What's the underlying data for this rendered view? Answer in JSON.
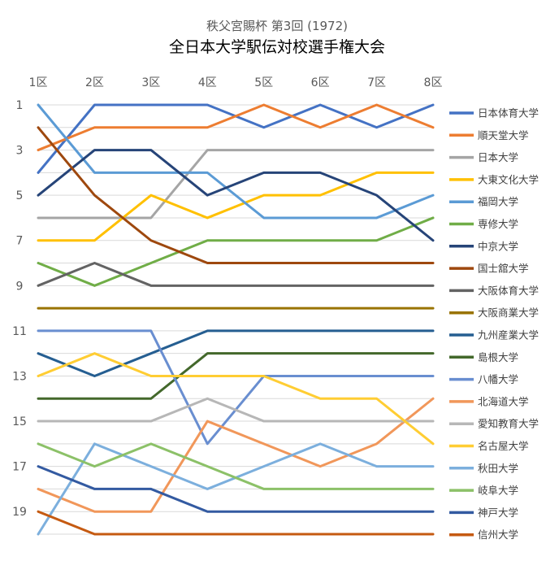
{
  "chart_data": {
    "type": "line",
    "title": "秩父宮賜杯 第3回 (1972)",
    "subtitle": "全日本大学駅伝対校選手権大会",
    "x_categories": [
      "1区",
      "2区",
      "3区",
      "4区",
      "5区",
      "6区",
      "7区",
      "8区"
    ],
    "y_axis": {
      "reversed": true,
      "range": [
        1,
        20
      ],
      "tick_labels": [
        "1",
        "3",
        "5",
        "7",
        "9",
        "11",
        "13",
        "15",
        "17",
        "19"
      ]
    },
    "grid": "horizontal",
    "legend_position": "right",
    "series": [
      {
        "name": "日本体育大学",
        "color": "#4472C4",
        "values": [
          4,
          1,
          1,
          1,
          2,
          1,
          2,
          1
        ]
      },
      {
        "name": "順天堂大学",
        "color": "#ED7D31",
        "values": [
          3,
          2,
          2,
          2,
          1,
          2,
          1,
          2
        ]
      },
      {
        "name": "日本大学",
        "color": "#A5A5A5",
        "values": [
          6,
          6,
          6,
          3,
          3,
          3,
          3,
          3
        ]
      },
      {
        "name": "大東文化大学",
        "color": "#FFC000",
        "values": [
          7,
          7,
          5,
          6,
          5,
          5,
          4,
          4
        ]
      },
      {
        "name": "福岡大学",
        "color": "#5B9BD5",
        "values": [
          1,
          4,
          4,
          4,
          6,
          6,
          6,
          5
        ]
      },
      {
        "name": "専修大学",
        "color": "#70AD47",
        "values": [
          8,
          9,
          8,
          7,
          7,
          7,
          7,
          6
        ]
      },
      {
        "name": "中京大学",
        "color": "#264478",
        "values": [
          5,
          3,
          3,
          5,
          4,
          4,
          5,
          7
        ]
      },
      {
        "name": "国士舘大学",
        "color": "#9E480E",
        "values": [
          2,
          5,
          7,
          8,
          8,
          8,
          8,
          8
        ]
      },
      {
        "name": "大阪体育大学",
        "color": "#636363",
        "values": [
          9,
          8,
          9,
          9,
          9,
          9,
          9,
          9
        ]
      },
      {
        "name": "大阪商業大学",
        "color": "#997300",
        "values": [
          10,
          10,
          10,
          10,
          10,
          10,
          10,
          10
        ]
      },
      {
        "name": "九州産業大学",
        "color": "#255E91",
        "values": [
          12,
          13,
          12,
          11,
          11,
          11,
          11,
          11
        ]
      },
      {
        "name": "島根大学",
        "color": "#43682B",
        "values": [
          14,
          14,
          14,
          12,
          12,
          12,
          12,
          12
        ]
      },
      {
        "name": "八幡大学",
        "color": "#698ED0",
        "values": [
          11,
          11,
          11,
          16,
          13,
          13,
          13,
          13
        ]
      },
      {
        "name": "北海道大学",
        "color": "#F1975A",
        "values": [
          18,
          19,
          19,
          15,
          16,
          17,
          16,
          14
        ]
      },
      {
        "name": "愛知教育大学",
        "color": "#B7B7B7",
        "values": [
          15,
          15,
          15,
          14,
          15,
          15,
          15,
          15
        ]
      },
      {
        "name": "名古屋大学",
        "color": "#FFCD33",
        "values": [
          13,
          12,
          13,
          13,
          13,
          14,
          14,
          16
        ]
      },
      {
        "name": "秋田大学",
        "color": "#7CAFDD",
        "values": [
          20,
          16,
          17,
          18,
          17,
          16,
          17,
          17
        ]
      },
      {
        "name": "岐阜大学",
        "color": "#8CC168",
        "values": [
          16,
          17,
          16,
          17,
          18,
          18,
          18,
          18
        ]
      },
      {
        "name": "神戸大学",
        "color": "#335AA1",
        "values": [
          17,
          18,
          18,
          19,
          19,
          19,
          19,
          19
        ]
      },
      {
        "name": "信州大学",
        "color": "#C55A11",
        "values": [
          19,
          20,
          20,
          20,
          20,
          20,
          20,
          20
        ]
      }
    ]
  }
}
